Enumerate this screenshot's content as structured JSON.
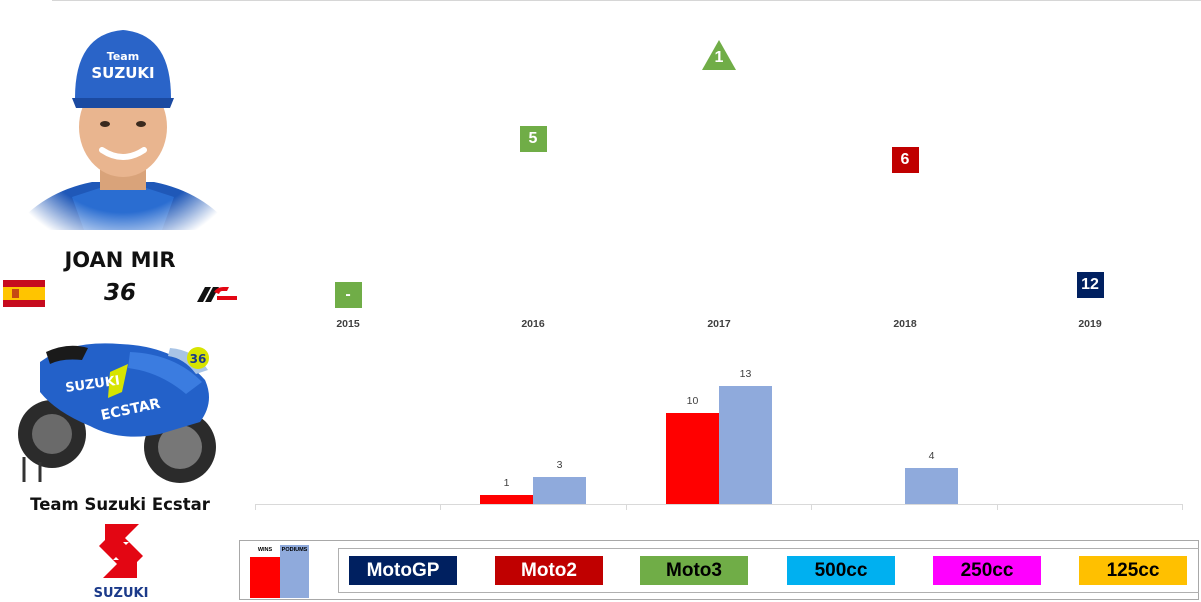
{
  "rider": {
    "name": "JOAN MIR",
    "number": "36",
    "team": "Team Suzuki Ecstar",
    "logo_text": "SUZUKI",
    "helmet_text": "Team SUZUKI",
    "bike_number": "36"
  },
  "chart_data": [
    {
      "type": "scatter",
      "description_of_marks": "category badge per season showing championship position",
      "categories": [
        "2015",
        "2016",
        "2017",
        "2018",
        "2019"
      ],
      "points": [
        {
          "x": "2015",
          "label": "-",
          "class": "Moto3",
          "shape": "square"
        },
        {
          "x": "2016",
          "label": "5",
          "class": "Moto3",
          "shape": "square"
        },
        {
          "x": "2017",
          "label": "1",
          "class": "Moto3",
          "shape": "triangle"
        },
        {
          "x": "2018",
          "label": "6",
          "class": "Moto2",
          "shape": "square"
        },
        {
          "x": "2019",
          "label": "12",
          "class": "MotoGP",
          "shape": "square"
        }
      ],
      "ylim": [
        0,
        13
      ],
      "y_reversed": true,
      "y_values": [
        null,
        5,
        1,
        6,
        12
      ],
      "grid": false
    },
    {
      "type": "bar",
      "categories": [
        "2015",
        "2016",
        "2017",
        "2018",
        "2019"
      ],
      "series": [
        {
          "name": "WINS",
          "values": [
            0,
            1,
            10,
            0,
            0
          ],
          "color": "#ff0000"
        },
        {
          "name": "PODIUMS",
          "values": [
            0,
            3,
            13,
            4,
            0
          ],
          "color": "#8faadc"
        }
      ],
      "data_labels": {
        "WINS": [
          "",
          "1",
          "10",
          "",
          ""
        ],
        "PODIUMS": [
          "",
          "3",
          "13",
          "4",
          ""
        ]
      },
      "ylim": [
        0,
        13
      ],
      "grid": false
    }
  ],
  "legend": {
    "wins_label": "WINS",
    "podiums_label": "PODIUMS",
    "classes": [
      {
        "name": "MotoGP",
        "bg": "#002060",
        "fg": "#ffffff"
      },
      {
        "name": "Moto2",
        "bg": "#c00000",
        "fg": "#ffffff"
      },
      {
        "name": "Moto3",
        "bg": "#70ad47",
        "fg": "#000000"
      },
      {
        "name": "500cc",
        "bg": "#00b0f0",
        "fg": "#000000"
      },
      {
        "name": "250cc",
        "bg": "#ff00ff",
        "fg": "#000000"
      },
      {
        "name": "125cc",
        "bg": "#ffc000",
        "fg": "#000000"
      }
    ]
  },
  "colors": {
    "MotoGP": "#002060",
    "Moto2": "#c00000",
    "Moto3": "#70ad47"
  },
  "icons": {
    "flag": "spain-flag-icon",
    "series_logo": "motogp-logo-icon"
  }
}
